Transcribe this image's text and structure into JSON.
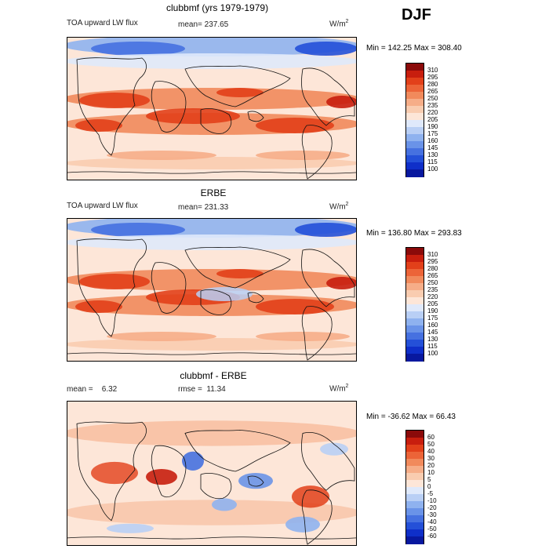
{
  "season": "DJF",
  "panels": [
    {
      "title": "clubbmf (yrs 1979-1979)",
      "left_label": "TOA upward LW flux",
      "stat_label": "mean=",
      "stat_value": "237.65",
      "stat2_label": "",
      "stat2_value": "",
      "units": "W/m",
      "units_sup": "2",
      "minmax": "Min = 142.25 Max = 308.40",
      "colorbar": {
        "labels": [
          "310",
          "295",
          "280",
          "265",
          "250",
          "235",
          "220",
          "205",
          "190",
          "175",
          "160",
          "145",
          "130",
          "115",
          "100"
        ],
        "colors": [
          "#8b0a0a",
          "#c81e0e",
          "#e2401a",
          "#ec6438",
          "#f18a5c",
          "#f6ad88",
          "#f9ccb0",
          "#fde6d8",
          "#dfe9fb",
          "#b9cff5",
          "#8fb2ef",
          "#6a93e8",
          "#4671e0",
          "#2450d8",
          "#0f2fc9",
          "#08189f"
        ]
      }
    },
    {
      "title": "ERBE",
      "left_label": "TOA upward LW flux",
      "stat_label": "mean=",
      "stat_value": "231.33",
      "stat2_label": "",
      "stat2_value": "",
      "units": "W/m",
      "units_sup": "2",
      "minmax": "Min = 136.80 Max = 293.83",
      "colorbar": {
        "labels": [
          "310",
          "295",
          "280",
          "265",
          "250",
          "235",
          "220",
          "205",
          "190",
          "175",
          "160",
          "145",
          "130",
          "115",
          "100"
        ],
        "colors": [
          "#8b0a0a",
          "#c81e0e",
          "#e2401a",
          "#ec6438",
          "#f18a5c",
          "#f6ad88",
          "#f9ccb0",
          "#fde6d8",
          "#dfe9fb",
          "#b9cff5",
          "#8fb2ef",
          "#6a93e8",
          "#4671e0",
          "#2450d8",
          "#0f2fc9",
          "#08189f"
        ]
      }
    },
    {
      "title": "clubbmf - ERBE",
      "left_label": "mean =",
      "stat_label": "",
      "stat_value": "6.32",
      "stat2_label": "rmse =",
      "stat2_value": "11.34",
      "units": "W/m",
      "units_sup": "2",
      "minmax": "Min = -36.62 Max =  66.43",
      "colorbar": {
        "labels": [
          "60",
          "50",
          "40",
          "30",
          "20",
          "10",
          "5",
          "0",
          "-5",
          "-10",
          "-20",
          "-30",
          "-40",
          "-50",
          "-60"
        ],
        "colors": [
          "#8b0a0a",
          "#c81e0e",
          "#e2401a",
          "#ec6438",
          "#f18a5c",
          "#f6ad88",
          "#f9ccb0",
          "#fde6d8",
          "#dfe9fb",
          "#b9cff5",
          "#8fb2ef",
          "#6a93e8",
          "#4671e0",
          "#2450d8",
          "#0f2fc9",
          "#08189f"
        ]
      }
    }
  ]
}
